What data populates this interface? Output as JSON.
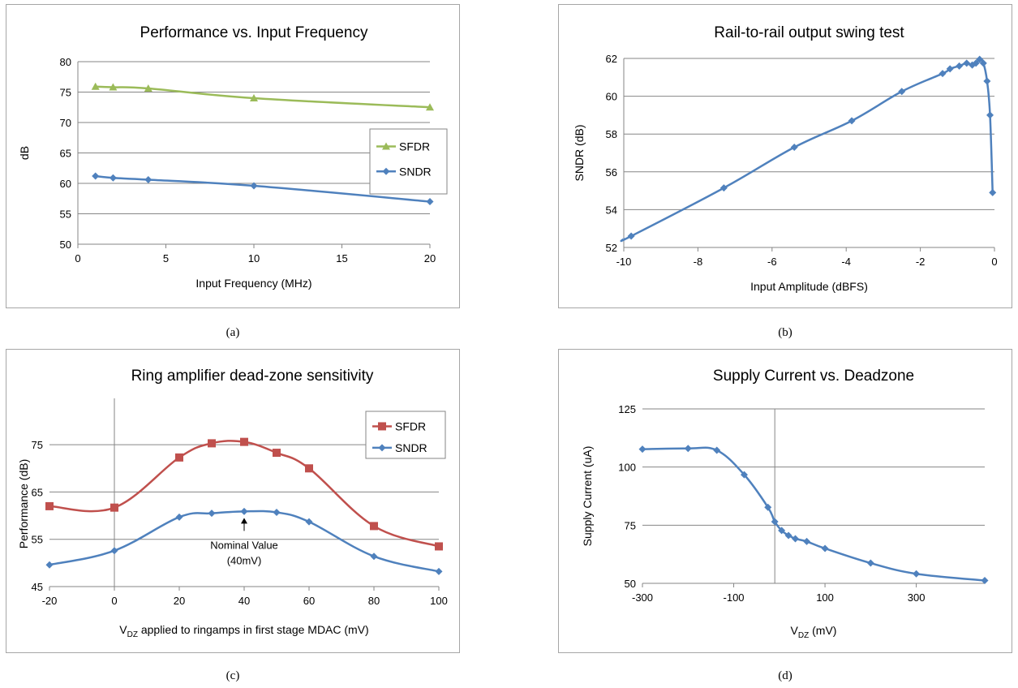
{
  "chart_data": [
    {
      "id": "a",
      "type": "line",
      "title": "Performance vs. Input Frequency",
      "xlabel": "Input Frequency (MHz)",
      "ylabel": "dB",
      "xlim": [
        0,
        20
      ],
      "ylim": [
        50,
        80
      ],
      "xticks": [
        "0",
        "5",
        "10",
        "15",
        "20"
      ],
      "yticks": [
        "50",
        "55",
        "60",
        "65",
        "70",
        "75",
        "80"
      ],
      "grid": "horizontal",
      "legend": "right",
      "series": [
        {
          "name": "SFDR",
          "color": "#9bbb59",
          "marker": "triangle",
          "x": [
            1,
            2,
            4,
            10,
            20
          ],
          "y": [
            75.9,
            75.8,
            75.6,
            74.0,
            72.5
          ]
        },
        {
          "name": "SNDR",
          "color": "#4f81bd",
          "marker": "diamond",
          "x": [
            1,
            2,
            4,
            10,
            20
          ],
          "y": [
            61.2,
            60.9,
            60.6,
            59.6,
            57.0
          ]
        }
      ],
      "caption": "(a)"
    },
    {
      "id": "b",
      "type": "line",
      "title": "Rail-to-rail output swing test",
      "xlabel": "Input Amplitude (dBFS)",
      "ylabel": "SNDR (dB)",
      "xlim": [
        -10,
        0
      ],
      "ylim": [
        52,
        62
      ],
      "xticks": [
        "-10",
        "-8",
        "-6",
        "-4",
        "-2",
        "0"
      ],
      "yticks": [
        "52",
        "54",
        "56",
        "58",
        "60",
        "62"
      ],
      "grid": "horizontal",
      "series": [
        {
          "name": "",
          "color": "#4f81bd",
          "marker": "diamond",
          "x": [
            -9.8,
            -7.3,
            -5.4,
            -3.85,
            -2.5,
            -1.4,
            -1.2,
            -0.95,
            -0.75,
            -0.6,
            -0.5,
            -0.4,
            -0.3,
            -0.2,
            -0.12,
            -0.05
          ],
          "y": [
            52.6,
            55.15,
            57.3,
            58.7,
            60.25,
            61.2,
            61.45,
            61.6,
            61.75,
            61.65,
            61.75,
            61.95,
            61.75,
            60.8,
            59.0,
            54.9
          ]
        }
      ],
      "caption": "(b)"
    },
    {
      "id": "c",
      "type": "line",
      "title": "Ring amplifier dead-zone sensitivity",
      "xlabel_main": "V",
      "xlabel_sub": "DZ",
      "xlabel_rest": " applied to ringamps in first stage MDAC (mV)",
      "ylabel": "Performance  (dB)",
      "xlim": [
        -20,
        100
      ],
      "ylim": [
        45,
        80
      ],
      "xticks": [
        "-20",
        "0",
        "20",
        "40",
        "60",
        "80",
        "100"
      ],
      "yticks": [
        "45",
        "55",
        "65",
        "75"
      ],
      "grid": "horizontal",
      "legend": "top-right",
      "annotation": {
        "line1": "Nominal Value",
        "line2": "(40mV)",
        "x": 40
      },
      "series": [
        {
          "name": "SFDR",
          "color": "#c0504d",
          "marker": "square",
          "x": [
            -20,
            0,
            20,
            30,
            40,
            50,
            60,
            80,
            100
          ],
          "y": [
            62.0,
            61.7,
            72.3,
            75.3,
            75.6,
            73.3,
            70.0,
            57.8,
            53.5
          ]
        },
        {
          "name": "SNDR",
          "color": "#4f81bd",
          "marker": "diamond",
          "x": [
            -20,
            0,
            20,
            30,
            40,
            50,
            60,
            80,
            100
          ],
          "y": [
            49.6,
            52.6,
            59.7,
            60.5,
            60.9,
            60.7,
            58.7,
            51.4,
            48.2
          ]
        }
      ],
      "caption": "(c)"
    },
    {
      "id": "d",
      "type": "line",
      "title": "Supply Current vs. Deadzone",
      "xlabel_main": "V",
      "xlabel_sub": "DZ",
      "xlabel_rest": " (mV)",
      "ylabel": "Supply Current (uA)",
      "xlim": [
        -300,
        450
      ],
      "ylim": [
        50,
        125
      ],
      "xticks": [
        "-300",
        "-100",
        "100",
        "300"
      ],
      "yticks": [
        "50",
        "75",
        "100",
        "125"
      ],
      "grid": "horizontal",
      "series": [
        {
          "name": "",
          "color": "#4f81bd",
          "marker": "diamond",
          "x": [
            -300,
            -200,
            -137,
            -77,
            -25,
            -10,
            5,
            20,
            35,
            60,
            100,
            200,
            300,
            450
          ],
          "y": [
            107.7,
            108.0,
            107.2,
            96.7,
            82.7,
            76.5,
            72.7,
            70.6,
            69.2,
            68.0,
            65.0,
            58.7,
            54.1,
            51.2
          ]
        }
      ],
      "caption": "(d)"
    }
  ]
}
